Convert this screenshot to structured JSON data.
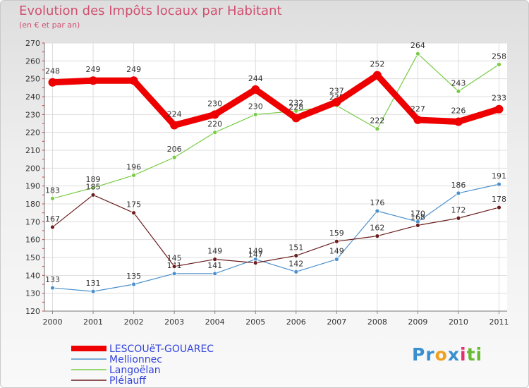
{
  "chart_data": {
    "type": "line",
    "title": "Evolution des Impôts locaux par Habitant",
    "subtitle": "(en € et par an)",
    "x": [
      "2000",
      "2001",
      "2002",
      "2003",
      "2004",
      "2005",
      "2006",
      "2007",
      "2008",
      "2009",
      "2010",
      "2011"
    ],
    "ylim": [
      120,
      270
    ],
    "yticks": [
      "120",
      "130",
      "140",
      "150",
      "160",
      "170",
      "180",
      "190",
      "200",
      "210",
      "220",
      "230",
      "240",
      "250",
      "260",
      "270"
    ],
    "grid": true,
    "series": [
      {
        "name": "LESCOUëT-GOUAREC",
        "color": "#ee0000",
        "values": [
          248,
          249,
          249,
          224,
          230,
          244,
          228,
          237,
          252,
          227,
          226,
          233
        ],
        "labels": [
          "248",
          "249",
          "249",
          "224",
          "230",
          "244",
          "228",
          "237",
          "252",
          "227",
          "226",
          "233"
        ]
      },
      {
        "name": "Mellionnec",
        "color": "#4d91cc",
        "values": [
          133,
          131,
          135,
          141,
          141,
          149,
          142,
          149,
          176,
          170,
          186,
          191
        ],
        "labels": [
          "133",
          "131",
          "135",
          "141",
          "141",
          "149",
          "142",
          "149",
          "176",
          "170",
          "186",
          "191"
        ]
      },
      {
        "name": "Langoëlan",
        "color": "#77cc44",
        "values": [
          183,
          189,
          196,
          206,
          220,
          230,
          232,
          235,
          222,
          264,
          243,
          258
        ],
        "labels": [
          "183",
          "189",
          "196",
          "206",
          "220",
          "230",
          "232",
          "235",
          "222",
          "264",
          "243",
          "258"
        ]
      },
      {
        "name": "Plélauff",
        "color": "#6b1e1e",
        "values": [
          167,
          185,
          175,
          145,
          149,
          147,
          151,
          159,
          162,
          168,
          172,
          178
        ],
        "labels": [
          "167",
          "185",
          "175",
          "145",
          "149",
          "147",
          "151",
          "159",
          "162",
          "168",
          "172",
          "178"
        ]
      }
    ]
  },
  "logo": {
    "parts": [
      "Pr",
      "o",
      "x",
      "i",
      "t",
      "i"
    ],
    "colors": [
      "#3a8fd0",
      "#f0a020",
      "#3a8fd0",
      "#e03070",
      "#66bb33",
      "#66bb33"
    ]
  }
}
